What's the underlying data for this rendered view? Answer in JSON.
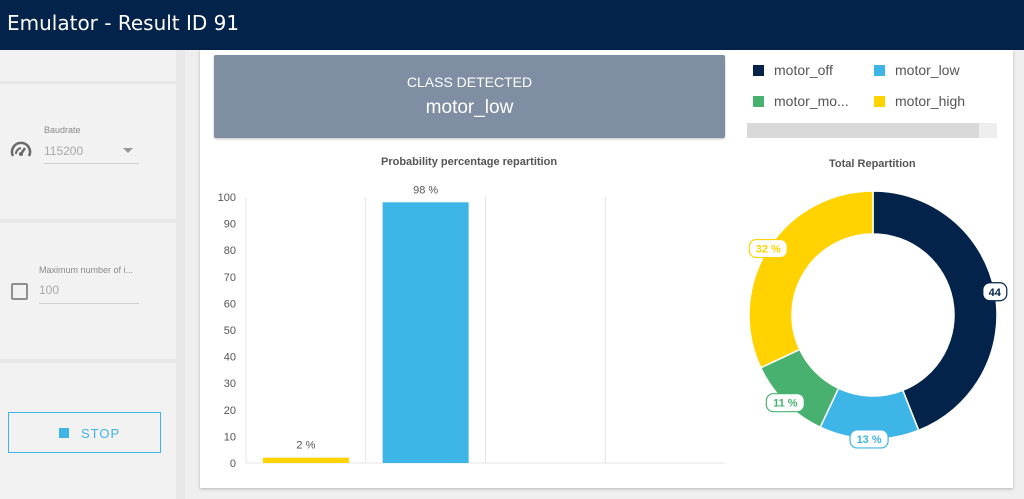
{
  "window": {
    "title": "Emulator - Result ID 91"
  },
  "sidebar": {
    "baudrate": {
      "label": "Baudrate",
      "value": "115200",
      "icon": "gauge-icon"
    },
    "max_inferences": {
      "label": "Maximum number of i...",
      "value": "100",
      "checked": false
    },
    "stop_button": {
      "label": "STOP",
      "icon": "stop-icon"
    }
  },
  "result": {
    "caption": "CLASS DETECTED",
    "class_name": "motor_low"
  },
  "legend": {
    "items": [
      {
        "label": "motor_off",
        "color": "#03234b"
      },
      {
        "label": "motor_low",
        "color": "#3db5e6"
      },
      {
        "label": "motor_mo...",
        "color": "#49b170"
      },
      {
        "label": "motor_high",
        "color": "#ffd200"
      }
    ]
  },
  "colors": {
    "titlebar": "#03234b",
    "accent": "#3fb4e6"
  },
  "chart_data": [
    {
      "type": "bar",
      "title": "Probability percentage repartition",
      "categories": [
        "motor_high",
        "motor_low",
        "motor_mo...",
        "motor_off"
      ],
      "values": [
        2,
        98,
        0,
        0
      ],
      "data_labels": [
        "2 %",
        "98 %",
        "",
        ""
      ],
      "colors": [
        "#ffd200",
        "#3db5e6",
        "#49b170",
        "#03234b"
      ],
      "ylim": [
        0,
        100
      ],
      "yticks": [
        "100",
        "90",
        "80",
        "70",
        "60",
        "50",
        "40",
        "30",
        "20",
        "10",
        "0"
      ],
      "grid": true
    },
    {
      "type": "pie",
      "title": "Total Repartition",
      "categories": [
        "motor_off",
        "motor_low",
        "motor_mo...",
        "motor_high"
      ],
      "values": [
        44,
        13,
        11,
        32
      ],
      "data_labels": [
        "44",
        "13 %",
        "11 %",
        "32 %"
      ],
      "colors": [
        "#03234b",
        "#3db5e6",
        "#49b170",
        "#ffd200"
      ]
    }
  ]
}
